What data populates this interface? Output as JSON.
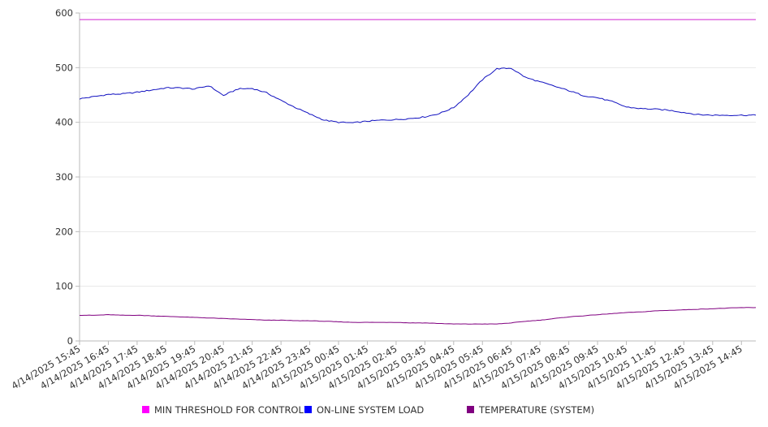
{
  "chart_data": {
    "type": "line",
    "title": "",
    "xlabel": "",
    "ylabel": "",
    "ylim": [
      0,
      600
    ],
    "y_ticks": [
      0,
      100,
      200,
      300,
      400,
      500,
      600
    ],
    "grid": "horizontal",
    "legend_position": "bottom",
    "x_tick_labels": [
      "4/14/2025 15:45",
      "4/14/2025 16:45",
      "4/14/2025 17:45",
      "4/14/2025 18:45",
      "4/14/2025 19:45",
      "4/14/2025 20:45",
      "4/14/2025 21:45",
      "4/14/2025 22:45",
      "4/14/2025 23:45",
      "4/15/2025 00:45",
      "4/15/2025 01:45",
      "4/15/2025 02:45",
      "4/15/2025 03:45",
      "4/15/2025 04:45",
      "4/15/2025 05:45",
      "4/15/2025 06:45",
      "4/15/2025 07:45",
      "4/15/2025 08:45",
      "4/15/2025 09:45",
      "4/15/2025 10:45",
      "4/15/2025 11:45",
      "4/15/2025 12:45",
      "4/15/2025 13:45",
      "4/15/2025 14:45"
    ],
    "x": [
      "4/14/2025 15:45",
      "4/14/2025 16:15",
      "4/14/2025 16:45",
      "4/14/2025 17:15",
      "4/14/2025 17:45",
      "4/14/2025 18:15",
      "4/14/2025 18:45",
      "4/14/2025 19:15",
      "4/14/2025 19:45",
      "4/14/2025 20:15",
      "4/14/2025 20:45",
      "4/14/2025 21:15",
      "4/14/2025 21:45",
      "4/14/2025 22:15",
      "4/14/2025 22:45",
      "4/14/2025 23:15",
      "4/14/2025 23:45",
      "4/15/2025 00:15",
      "4/15/2025 00:45",
      "4/15/2025 01:15",
      "4/15/2025 01:45",
      "4/15/2025 02:15",
      "4/15/2025 02:45",
      "4/15/2025 03:15",
      "4/15/2025 03:45",
      "4/15/2025 04:15",
      "4/15/2025 04:45",
      "4/15/2025 05:15",
      "4/15/2025 05:45",
      "4/15/2025 06:15",
      "4/15/2025 06:45",
      "4/15/2025 07:15",
      "4/15/2025 07:45",
      "4/15/2025 08:15",
      "4/15/2025 08:45",
      "4/15/2025 09:15",
      "4/15/2025 09:45",
      "4/15/2025 10:15",
      "4/15/2025 10:45",
      "4/15/2025 11:15",
      "4/15/2025 11:45",
      "4/15/2025 12:15",
      "4/15/2025 12:45",
      "4/15/2025 13:15",
      "4/15/2025 13:45",
      "4/15/2025 14:15",
      "4/15/2025 14:45",
      "4/15/2025 15:15"
    ],
    "series": [
      {
        "name": "MIN THRESHOLD FOR CONTROL",
        "color": "#d020d0",
        "legend_color": "#ff00ff",
        "values": [
          588,
          588,
          588,
          588,
          588,
          588,
          588,
          588,
          588,
          588,
          588,
          588,
          588,
          588,
          588,
          588,
          588,
          588,
          588,
          588,
          588,
          588,
          588,
          588,
          588,
          588,
          588,
          588,
          588,
          588,
          588,
          588,
          588,
          588,
          588,
          588,
          588,
          588,
          588,
          588,
          588,
          588,
          588,
          588,
          588,
          588,
          588,
          588
        ]
      },
      {
        "name": "ON-LINE SYSTEM LOAD",
        "color": "#1010c0",
        "legend_color": "#0000ff",
        "values": [
          443,
          447,
          451,
          452,
          455,
          459,
          463,
          463,
          461,
          467,
          449,
          461,
          462,
          454,
          440,
          427,
          415,
          404,
          400,
          399,
          402,
          404,
          405,
          407,
          410,
          416,
          427,
          450,
          478,
          498,
          499,
          482,
          474,
          466,
          458,
          449,
          445,
          438,
          428,
          425,
          424,
          422,
          418,
          414,
          413,
          413,
          413,
          413
        ]
      },
      {
        "name": "TEMPERATURE (SYSTEM)",
        "color": "#800080",
        "legend_color": "#800080",
        "values": [
          47,
          47,
          48,
          47,
          47,
          46,
          45,
          44,
          43,
          42,
          41,
          40,
          39,
          38,
          38,
          37,
          37,
          36,
          35,
          34,
          34,
          34,
          34,
          33,
          33,
          32,
          31,
          31,
          31,
          31,
          33,
          36,
          38,
          41,
          44,
          46,
          48,
          50,
          52,
          53,
          55,
          56,
          57,
          58,
          59,
          60,
          61,
          61
        ]
      }
    ]
  }
}
